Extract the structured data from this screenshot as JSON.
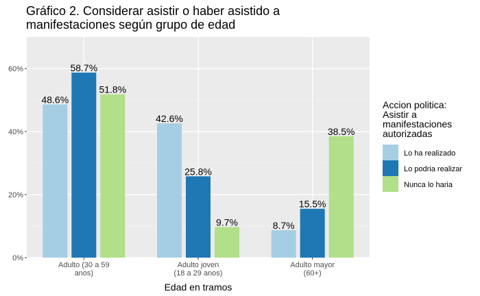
{
  "chart_data": {
    "type": "bar",
    "title": "Gráfico 2. Considerar asistir o haber asistido a manifestaciones según grupo de edad",
    "categories": [
      [
        "Adulto (30 a 59",
        "anos)"
      ],
      [
        "Adulto joven",
        "(18 a 29 anos)"
      ],
      [
        "Adulto mayor",
        "(60+)"
      ]
    ],
    "series": [
      {
        "name": "Lo ha realizado",
        "color": "#a6cee3",
        "values": [
          48.6,
          42.6,
          8.7
        ],
        "labels": [
          "48.6%",
          "42.6%",
          "8.7%"
        ]
      },
      {
        "name": "Lo podria realizar",
        "color": "#1f78b4",
        "values": [
          58.7,
          25.8,
          15.5
        ],
        "labels": [
          "58.7%",
          "25.8%",
          "15.5%"
        ]
      },
      {
        "name": "Nunca lo haria",
        "color": "#b2df8a",
        "values": [
          51.8,
          9.7,
          38.5
        ],
        "labels": [
          "51.8%",
          "9.7%",
          "38.5%"
        ]
      }
    ],
    "xlabel": "Edad en tramos",
    "ylabel": "",
    "ylim": [
      0,
      70
    ],
    "yticks": [
      0,
      20,
      40,
      60
    ],
    "ytick_labels": [
      "0%",
      "20%",
      "40%",
      "60%"
    ],
    "legend_title": [
      "Accion politica:",
      "Asistir a",
      "manifestaciones",
      "autorizadas"
    ],
    "legend_position": "right",
    "grid": true,
    "background": "#ebebeb"
  }
}
